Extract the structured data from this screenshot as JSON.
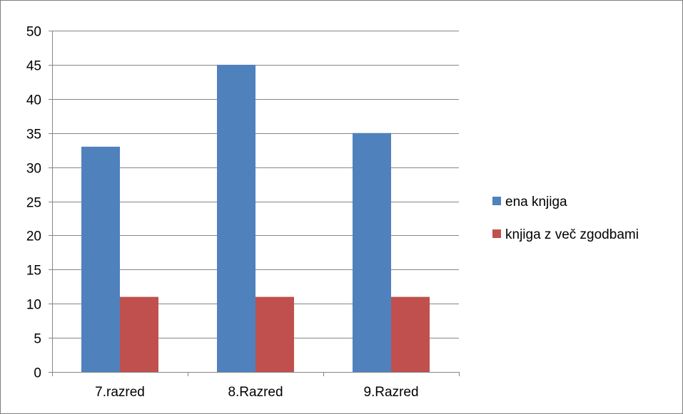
{
  "chart_data": {
    "type": "bar",
    "title": "",
    "xlabel": "",
    "ylabel": "",
    "categories": [
      "7.razred",
      "8.Razred",
      "9.Razred"
    ],
    "series": [
      {
        "name": "ena knjiga",
        "values": [
          33,
          45,
          35
        ],
        "color": "#4f81bd"
      },
      {
        "name": "knjiga z več zgodbami",
        "values": [
          11,
          11,
          11
        ],
        "color": "#c0504d"
      }
    ],
    "ylim": [
      0,
      50
    ],
    "yticks": [
      "0",
      "5",
      "10",
      "15",
      "20",
      "25",
      "30",
      "35",
      "40",
      "45",
      "50"
    ],
    "grid": true,
    "legend_position": "right",
    "colors": {
      "gridline": "#868686",
      "border": "#7f7f7f"
    }
  }
}
